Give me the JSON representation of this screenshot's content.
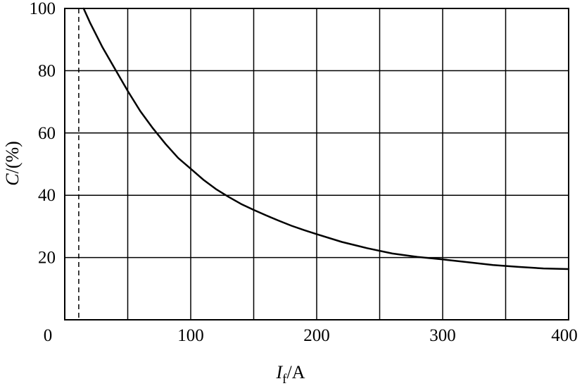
{
  "chart_data": {
    "type": "line",
    "title": "",
    "xlabel": {
      "symbol": "I",
      "subscript": "f",
      "unit": "/A"
    },
    "ylabel": {
      "symbol": "C",
      "unit": "/(%)"
    },
    "xlim": [
      0,
      400
    ],
    "ylim": [
      0,
      100
    ],
    "x_ticks": [
      "0",
      "100",
      "200",
      "300",
      "400"
    ],
    "y_ticks": [
      "20",
      "40",
      "60",
      "80",
      "100"
    ],
    "grid": true,
    "grid_x_step": 50,
    "grid_y_step": 20,
    "reference_line": {
      "x": 10,
      "style": "dashed"
    },
    "series": [
      {
        "x": [
          15,
          20,
          30,
          40,
          50,
          60,
          70,
          80,
          90,
          100,
          110,
          120,
          130,
          140,
          150,
          160,
          170,
          180,
          190,
          200,
          220,
          240,
          260,
          280,
          300,
          320,
          340,
          360,
          380,
          400
        ],
        "y": [
          100,
          95.5,
          87.5,
          80.5,
          73.5,
          67,
          61.5,
          56.5,
          52,
          48.5,
          45,
          42,
          39.5,
          37.2,
          35.3,
          33.5,
          31.8,
          30.2,
          28.8,
          27.5,
          25,
          23,
          21.3,
          20.2,
          19.4,
          18.5,
          17.6,
          17,
          16.5,
          16.3
        ]
      }
    ]
  }
}
